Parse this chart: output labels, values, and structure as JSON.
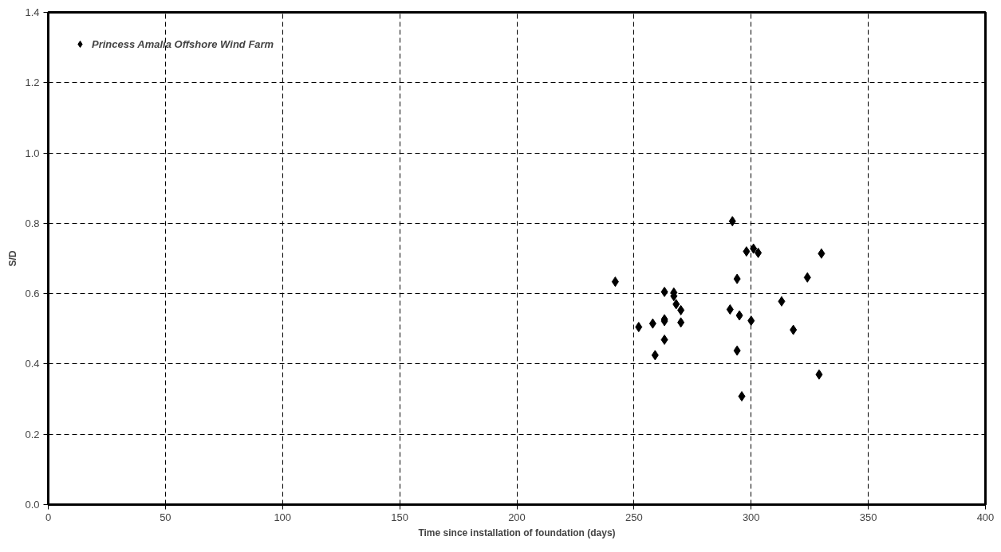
{
  "chart_data": {
    "type": "scatter",
    "xlabel": "Time since installation of foundation (days)",
    "ylabel": "S/D",
    "series": [
      {
        "name": "Princess Amalia Offshore Wind Farm",
        "color": "#000000",
        "x": [
          242,
          252,
          258,
          259,
          263,
          263,
          263,
          263,
          267,
          267,
          268,
          270,
          270,
          291,
          292,
          294,
          294,
          295,
          296,
          298,
          300,
          301,
          303,
          313,
          318,
          324,
          329,
          330
        ],
        "values": [
          0.634,
          0.505,
          0.515,
          0.425,
          0.605,
          0.527,
          0.522,
          0.469,
          0.603,
          0.593,
          0.57,
          0.553,
          0.518,
          0.555,
          0.806,
          0.642,
          0.438,
          0.538,
          0.308,
          0.72,
          0.523,
          0.728,
          0.716,
          0.578,
          0.497,
          0.646,
          0.37,
          0.714
        ]
      }
    ],
    "xlim": [
      0,
      400
    ],
    "xticks": [
      0,
      50,
      100,
      150,
      200,
      250,
      300,
      350,
      400
    ],
    "ylim": [
      0,
      1.4
    ],
    "yticks": [
      {
        "value": 0,
        "label": "0.0"
      },
      {
        "value": 0.2,
        "label": "0.2"
      },
      {
        "value": 0.4,
        "label": "0.4"
      },
      {
        "value": 0.6,
        "label": "0.6"
      },
      {
        "value": 0.8,
        "label": "0.8"
      },
      {
        "value": 1.0,
        "label": "1.0"
      },
      {
        "value": 1.2,
        "label": "1.2"
      },
      {
        "value": 1.4,
        "label": "1.4"
      }
    ],
    "grid": true,
    "legend": "top left",
    "marker": "diamond"
  }
}
